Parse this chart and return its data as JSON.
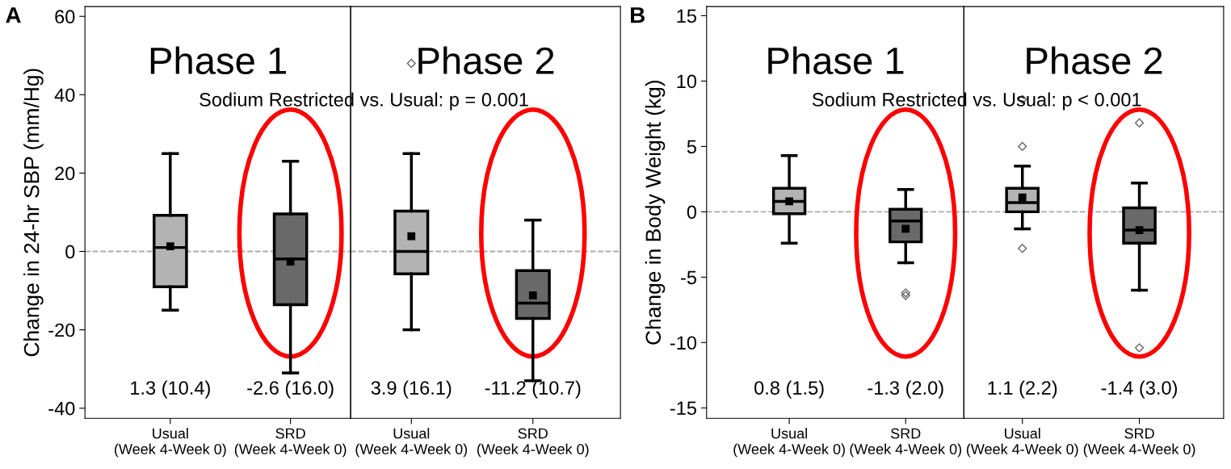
{
  "chart_data": [
    {
      "type": "box",
      "title": "Phase 1",
      "categories": [
        "Usual\n(Week 4-Week 0)",
        "SRD\n(Week 4-Week 0)"
      ],
      "boxes": [
        {
          "low": -15,
          "q1": -9,
          "median": 1,
          "q3": 9.2,
          "high": 25,
          "mean": 1.3
        },
        {
          "low": -31,
          "q1": -13.6,
          "median": -1.9,
          "q3": 9.6,
          "high": 23,
          "mean": -2.6
        }
      ],
      "colors": [
        "#b3b3b3",
        "#696969"
      ],
      "ylabel": "Change in 24-hr SBP (mm/Hg)",
      "ylim": [
        -42.6,
        62.5
      ],
      "yticks": [
        -40,
        -20,
        0,
        20,
        40,
        60
      ],
      "ref_lines": [
        {
          "axis": "y",
          "value": 0,
          "color": "#aaaaaa",
          "line_style": "dashed"
        }
      ],
      "annotations": [
        "A",
        "Sodium Restricted vs. Usual: p = 0.001",
        "1.3 (10.4)",
        "-2.6 (16.0)"
      ]
    },
    {
      "type": "box",
      "title": "Phase 2",
      "categories": [
        "Usual\n(Week 4-Week 0)",
        "SRD\n(Week 4-Week 0)"
      ],
      "boxes": [
        {
          "low": -20,
          "q1": -5.7,
          "median": 0,
          "q3": 10.3,
          "high": 25,
          "mean": 3.9,
          "outliers": [
            48
          ]
        },
        {
          "low": -33,
          "q1": -17.1,
          "median": -13.2,
          "q3": -4.9,
          "high": 8,
          "mean": -11.2
        }
      ],
      "colors": [
        "#b3b3b3",
        "#696969"
      ],
      "ylim": [
        -42.6,
        62.5
      ],
      "tick_labels": "x",
      "ref_lines": [
        {
          "axis": "y",
          "value": 0,
          "color": "#aaaaaa",
          "line_style": "dashed"
        }
      ],
      "annotations": [
        "3.9 (16.1)",
        "-11.2 (10.7)"
      ]
    },
    {
      "type": "box",
      "title": "Phase 1",
      "categories": [
        "Usual\n(Week 4-Week 0)",
        "SRD\n(Week 4-Week 0)"
      ],
      "boxes": [
        {
          "low": -2.4,
          "q1": -0.15,
          "median": 0.8,
          "q3": 1.8,
          "high": 4.3,
          "mean": 0.8
        },
        {
          "low": -3.9,
          "q1": -2.3,
          "median": -0.7,
          "q3": 0.2,
          "high": 1.7,
          "mean": -1.3,
          "outliers": [
            -6.2,
            -6.4
          ]
        }
      ],
      "colors": [
        "#b3b3b3",
        "#696969"
      ],
      "ylabel": "Change in Body Weight (kg)",
      "ylim": [
        -15.8,
        15.7
      ],
      "yticks": [
        -15,
        -10,
        -5,
        0,
        5,
        10,
        15
      ],
      "ref_lines": [
        {
          "axis": "y",
          "value": 0,
          "color": "#aaaaaa",
          "line_style": "dashed"
        }
      ],
      "annotations": [
        "B",
        "Sodium Restricted vs. Usual: p < 0.001",
        "0.8 (1.5)",
        "-1.3 (2.0)"
      ]
    },
    {
      "type": "box",
      "title": "Phase 2",
      "categories": [
        "Usual\n(Week 4-Week 0)",
        "SRD\n(Week 4-Week 0)"
      ],
      "boxes": [
        {
          "low": -1.3,
          "q1": 0,
          "median": 0.7,
          "q3": 1.8,
          "high": 3.5,
          "mean": 1.1,
          "outliers": [
            8.6,
            5.0,
            -2.8
          ]
        },
        {
          "low": -6.0,
          "q1": -2.4,
          "median": -1.4,
          "q3": 0.3,
          "high": 2.2,
          "mean": -1.4,
          "outliers": [
            6.8,
            -10.4
          ]
        }
      ],
      "colors": [
        "#b3b3b3",
        "#696969"
      ],
      "ylim": [
        -15.8,
        15.7
      ],
      "tick_labels": "x",
      "ref_lines": [
        {
          "axis": "y",
          "value": 0,
          "color": "#aaaaaa",
          "line_style": "dashed"
        }
      ],
      "annotations": [
        "1.1 (2.2)",
        "-1.4 (3.0)"
      ]
    }
  ]
}
